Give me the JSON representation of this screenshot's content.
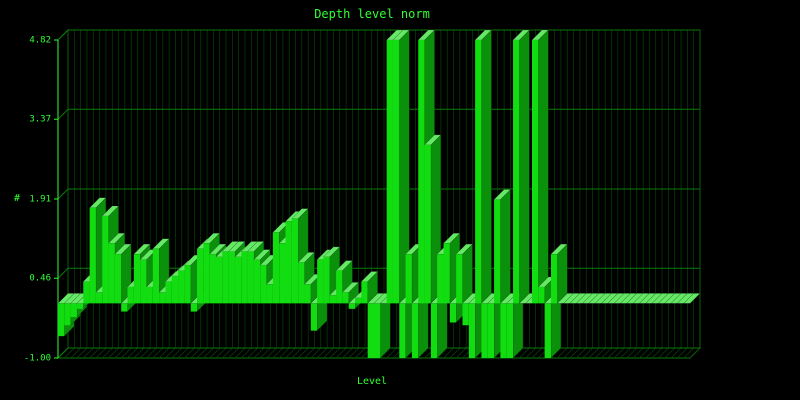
{
  "chart_data": {
    "type": "bar3d",
    "title": "Depth level norm",
    "x_label": "Level",
    "y_label": "#",
    "color": "#11dd11",
    "values": [
      -0.6,
      -0.4,
      -0.25,
      -0.1,
      0.4,
      1.75,
      0.2,
      1.6,
      1.1,
      0.9,
      -0.15,
      0.3,
      0.9,
      0.8,
      0.3,
      1.0,
      0.2,
      0.4,
      0.5,
      0.6,
      0.7,
      -0.15,
      1.0,
      1.1,
      0.9,
      0.85,
      0.95,
      0.95,
      0.85,
      0.95,
      0.95,
      0.8,
      0.7,
      0.35,
      1.3,
      1.1,
      1.5,
      1.55,
      0.75,
      0.35,
      -0.5,
      0.8,
      0.85,
      0.15,
      0.6,
      0.2,
      -0.1,
      0.1,
      0.4,
      -1.0,
      -1.0,
      0,
      4.82,
      4.82,
      -1.0,
      0.9,
      -1.0,
      4.82,
      2.9,
      -1.0,
      0.9,
      1.1,
      -0.35,
      0.9,
      -0.4,
      -1.0,
      4.82,
      -1.0,
      -1.0,
      1.9,
      -1.0,
      -1.0,
      4.82,
      0,
      0,
      4.82,
      0.3,
      -1.0,
      0.9,
      0,
      0,
      0,
      0,
      0,
      0,
      0,
      0,
      0,
      0,
      0,
      0,
      0,
      0,
      0,
      0,
      0,
      0,
      0,
      0,
      0
    ],
    "ylim": [
      -1.0,
      4.82
    ],
    "yticks": [
      {
        "value": -1.0,
        "label": "-1.00"
      },
      0.46,
      1.91,
      3.37,
      4.82
    ],
    "grid": true
  }
}
